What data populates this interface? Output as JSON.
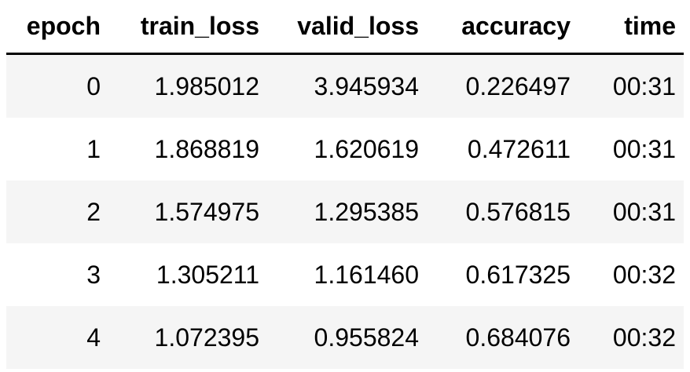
{
  "table": {
    "headers": [
      "epoch",
      "train_loss",
      "valid_loss",
      "accuracy",
      "time"
    ],
    "rows": [
      [
        "0",
        "1.985012",
        "3.945934",
        "0.226497",
        "00:31"
      ],
      [
        "1",
        "1.868819",
        "1.620619",
        "0.472611",
        "00:31"
      ],
      [
        "2",
        "1.574975",
        "1.295385",
        "0.576815",
        "00:31"
      ],
      [
        "3",
        "1.305211",
        "1.161460",
        "0.617325",
        "00:32"
      ],
      [
        "4",
        "1.072395",
        "0.955824",
        "0.684076",
        "00:32"
      ]
    ]
  },
  "colors": {
    "stripe": "#f5f5f5",
    "header_rule": "#000000"
  }
}
